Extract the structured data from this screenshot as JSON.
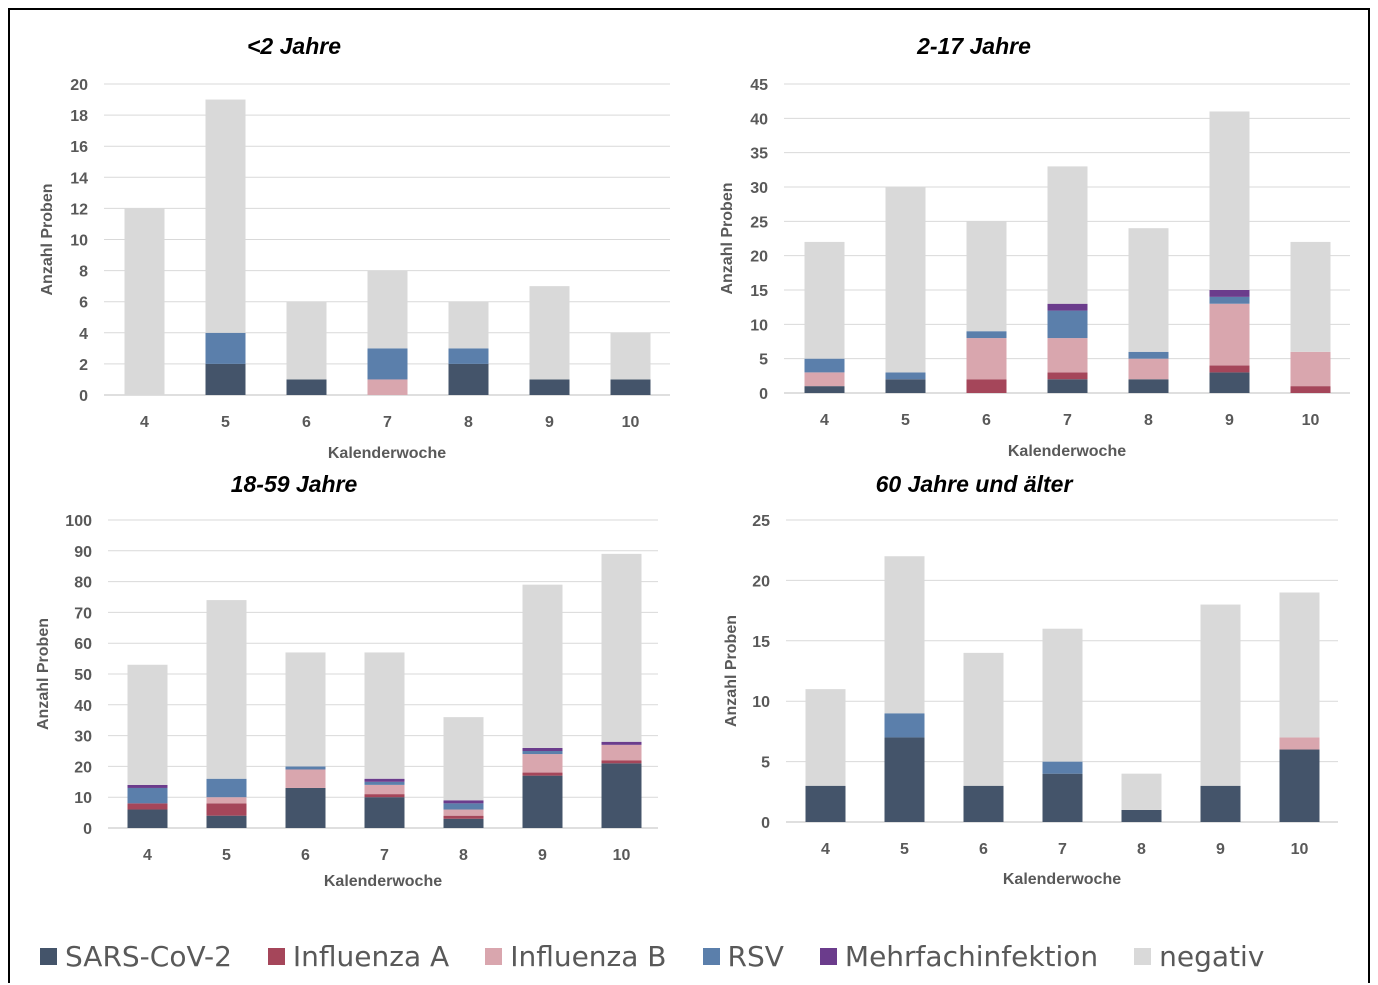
{
  "chart_data": [
    {
      "type": "bar",
      "stacked": true,
      "title": "<2 Jahre",
      "xlabel": "Kalenderwoche",
      "ylabel": "Anzahl Proben",
      "categories": [
        "4",
        "5",
        "6",
        "7",
        "8",
        "9",
        "10"
      ],
      "ylim": [
        0,
        20
      ],
      "yticks": [
        0,
        2,
        4,
        6,
        8,
        10,
        12,
        14,
        16,
        18,
        20
      ],
      "series": [
        {
          "name": "SARS-CoV-2",
          "values": [
            0,
            2,
            1,
            0,
            2,
            1,
            1
          ]
        },
        {
          "name": "Influenza A",
          "values": [
            0,
            0,
            0,
            0,
            0,
            0,
            0
          ]
        },
        {
          "name": "Influenza B",
          "values": [
            0,
            0,
            0,
            1,
            0,
            0,
            0
          ]
        },
        {
          "name": "RSV",
          "values": [
            0,
            2,
            0,
            2,
            1,
            0,
            0
          ]
        },
        {
          "name": "Mehrfachinfektion",
          "values": [
            0,
            0,
            0,
            0,
            0,
            0,
            0
          ]
        },
        {
          "name": "negativ",
          "values": [
            12,
            15,
            5,
            5,
            3,
            6,
            3
          ]
        }
      ],
      "grid": true
    },
    {
      "type": "bar",
      "stacked": true,
      "title": "2-17 Jahre",
      "xlabel": "Kalenderwoche",
      "ylabel": "Anzahl Proben",
      "categories": [
        "4",
        "5",
        "6",
        "7",
        "8",
        "9",
        "10"
      ],
      "ylim": [
        0,
        45
      ],
      "yticks": [
        0,
        5,
        10,
        15,
        20,
        25,
        30,
        35,
        40,
        45
      ],
      "series": [
        {
          "name": "SARS-CoV-2",
          "values": [
            1,
            2,
            0,
            2,
            2,
            3,
            0
          ]
        },
        {
          "name": "Influenza A",
          "values": [
            0,
            0,
            2,
            1,
            0,
            1,
            1
          ]
        },
        {
          "name": "Influenza B",
          "values": [
            2,
            0,
            6,
            5,
            3,
            9,
            5
          ]
        },
        {
          "name": "RSV",
          "values": [
            2,
            1,
            1,
            4,
            1,
            1,
            0
          ]
        },
        {
          "name": "Mehrfachinfektion",
          "values": [
            0,
            0,
            0,
            1,
            0,
            1,
            0
          ]
        },
        {
          "name": "negativ",
          "values": [
            17,
            27,
            16,
            20,
            18,
            26,
            16
          ]
        }
      ],
      "grid": true
    },
    {
      "type": "bar",
      "stacked": true,
      "title": "18-59 Jahre",
      "xlabel": "Kalenderwoche",
      "ylabel": "Anzahl Proben",
      "categories": [
        "4",
        "5",
        "6",
        "7",
        "8",
        "9",
        "10"
      ],
      "ylim": [
        0,
        100
      ],
      "yticks": [
        0,
        10,
        20,
        30,
        40,
        50,
        60,
        70,
        80,
        90,
        100
      ],
      "series": [
        {
          "name": "SARS-CoV-2",
          "values": [
            6,
            4,
            13,
            10,
            3,
            17,
            21
          ]
        },
        {
          "name": "Influenza A",
          "values": [
            2,
            4,
            0,
            1,
            1,
            1,
            1
          ]
        },
        {
          "name": "Influenza B",
          "values": [
            0,
            2,
            6,
            3,
            2,
            6,
            5
          ]
        },
        {
          "name": "RSV",
          "values": [
            5,
            6,
            1,
            1,
            2,
            1,
            0
          ]
        },
        {
          "name": "Mehrfachinfektion",
          "values": [
            1,
            0,
            0,
            1,
            1,
            1,
            1
          ]
        },
        {
          "name": "negativ",
          "values": [
            39,
            58,
            37,
            41,
            27,
            53,
            61
          ]
        }
      ],
      "grid": true
    },
    {
      "type": "bar",
      "stacked": true,
      "title": "60 Jahre und älter",
      "xlabel": "Kalenderwoche",
      "ylabel": "Anzahl Proben",
      "categories": [
        "4",
        "5",
        "6",
        "7",
        "8",
        "9",
        "10"
      ],
      "ylim": [
        0,
        25
      ],
      "yticks": [
        0,
        5,
        10,
        15,
        20,
        25
      ],
      "series": [
        {
          "name": "SARS-CoV-2",
          "values": [
            3,
            7,
            3,
            4,
            1,
            3,
            6
          ]
        },
        {
          "name": "Influenza A",
          "values": [
            0,
            0,
            0,
            0,
            0,
            0,
            0
          ]
        },
        {
          "name": "Influenza B",
          "values": [
            0,
            0,
            0,
            0,
            0,
            0,
            1
          ]
        },
        {
          "name": "RSV",
          "values": [
            0,
            2,
            0,
            1,
            0,
            0,
            0
          ]
        },
        {
          "name": "Mehrfachinfektion",
          "values": [
            0,
            0,
            0,
            0,
            0,
            0,
            0
          ]
        },
        {
          "name": "negativ",
          "values": [
            8,
            13,
            11,
            11,
            3,
            15,
            12
          ]
        }
      ],
      "grid": true
    }
  ],
  "legend": {
    "placement": "bottom",
    "items": [
      {
        "label": "SARS-CoV-2",
        "color": "#44546a"
      },
      {
        "label": "Influenza A",
        "color": "#a5465a"
      },
      {
        "label": "Influenza B",
        "color": "#d9a6ae"
      },
      {
        "label": "RSV",
        "color": "#5b7fab"
      },
      {
        "label": "Mehrfachinfektion",
        "color": "#6b3c8c"
      },
      {
        "label": "negativ",
        "color": "#d9d9d9"
      }
    ]
  }
}
